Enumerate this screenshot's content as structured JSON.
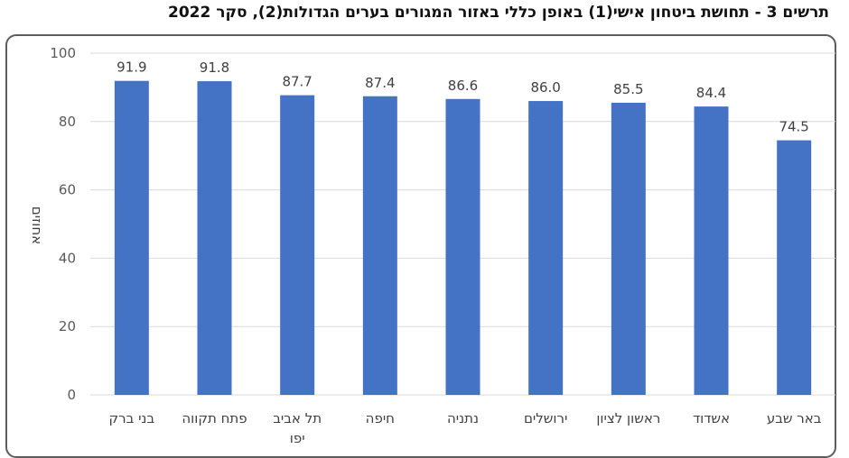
{
  "chart_data": {
    "type": "bar",
    "title": "תרשים 3 - תחושת ביטחון אישי(1) באופן כללי באזור המגורים בערים הגדולות(2), סקר 2022",
    "ylabel": "אחוזים",
    "xlabel": "",
    "ylim": [
      0,
      100
    ],
    "yticks": [
      0,
      20,
      40,
      60,
      80,
      100
    ],
    "categories": [
      [
        "בני ברק"
      ],
      [
        "פתח תקווה"
      ],
      [
        "תל אביב",
        "יפו"
      ],
      [
        "חיפה"
      ],
      [
        "נתניה"
      ],
      [
        "ירושלים"
      ],
      [
        "ראשון לציון"
      ],
      [
        "אשדוד"
      ],
      [
        "באר שבע"
      ]
    ],
    "values": [
      91.9,
      91.8,
      87.7,
      87.4,
      86.6,
      86.0,
      85.5,
      84.4,
      74.5
    ],
    "value_labels": [
      "91.9",
      "91.8",
      "87.7",
      "87.4",
      "86.6",
      "86.0",
      "85.5",
      "84.4",
      "74.5"
    ],
    "bar_color": "#4472C4",
    "grid_color": "#D9D9D9"
  }
}
